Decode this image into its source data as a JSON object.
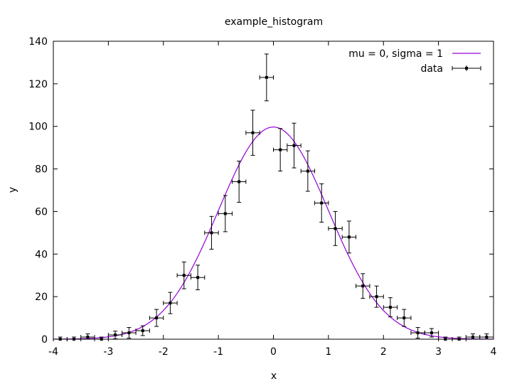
{
  "chart_data": {
    "type": "scatter",
    "title": "example_histogram",
    "xlabel": "x",
    "ylabel": "y",
    "xlim": [
      -4,
      4
    ],
    "ylim": [
      0,
      140
    ],
    "x_ticks": [
      "-4",
      "-3",
      "-2",
      "-1",
      "0",
      "1",
      "2",
      "3",
      "4"
    ],
    "y_ticks": [
      "0",
      "20",
      "40",
      "60",
      "80",
      "100",
      "120",
      "140"
    ],
    "grid": false,
    "legend_position": "top-right",
    "colors": {
      "curve": "#9400d3",
      "data": "#000000"
    },
    "series": [
      {
        "name": "mu = 0, sigma = 1",
        "kind": "line",
        "function": "normal-pdf",
        "mu": 0,
        "sigma": 1,
        "peak": 99.7
      },
      {
        "name": "data",
        "kind": "errorbars",
        "x_halfwidth": 0.125,
        "points": [
          {
            "x": -3.875,
            "y": 0,
            "err": 1
          },
          {
            "x": -3.625,
            "y": 0,
            "err": 1
          },
          {
            "x": -3.375,
            "y": 1,
            "err": 1.5
          },
          {
            "x": -3.125,
            "y": 0,
            "err": 1
          },
          {
            "x": -2.875,
            "y": 2,
            "err": 1.8
          },
          {
            "x": -2.625,
            "y": 3,
            "err": 2.5
          },
          {
            "x": -2.375,
            "y": 4,
            "err": 2.3
          },
          {
            "x": -2.125,
            "y": 10,
            "err": 4
          },
          {
            "x": -1.875,
            "y": 17,
            "err": 5
          },
          {
            "x": -1.625,
            "y": 30,
            "err": 6.3
          },
          {
            "x": -1.375,
            "y": 29,
            "err": 5.8
          },
          {
            "x": -1.125,
            "y": 50,
            "err": 7.7
          },
          {
            "x": -0.875,
            "y": 59,
            "err": 8.5
          },
          {
            "x": -0.625,
            "y": 74,
            "err": 9.7
          },
          {
            "x": -0.375,
            "y": 97,
            "err": 10.6
          },
          {
            "x": -0.125,
            "y": 123,
            "err": 11
          },
          {
            "x": 0.125,
            "y": 89,
            "err": 10
          },
          {
            "x": 0.375,
            "y": 91,
            "err": 10.5
          },
          {
            "x": 0.625,
            "y": 79,
            "err": 9.5
          },
          {
            "x": 0.875,
            "y": 64,
            "err": 9
          },
          {
            "x": 1.125,
            "y": 52,
            "err": 8
          },
          {
            "x": 1.375,
            "y": 48,
            "err": 7.5
          },
          {
            "x": 1.625,
            "y": 25,
            "err": 5.8
          },
          {
            "x": 1.875,
            "y": 20,
            "err": 5
          },
          {
            "x": 2.125,
            "y": 15,
            "err": 4.5
          },
          {
            "x": 2.375,
            "y": 10,
            "err": 4
          },
          {
            "x": 2.625,
            "y": 3,
            "err": 2.5
          },
          {
            "x": 2.875,
            "y": 3,
            "err": 2
          },
          {
            "x": 3.125,
            "y": 0,
            "err": 1
          },
          {
            "x": 3.375,
            "y": 0,
            "err": 1
          },
          {
            "x": 3.625,
            "y": 1,
            "err": 1.5
          },
          {
            "x": 3.875,
            "y": 1,
            "err": 1.5
          }
        ]
      }
    ]
  }
}
